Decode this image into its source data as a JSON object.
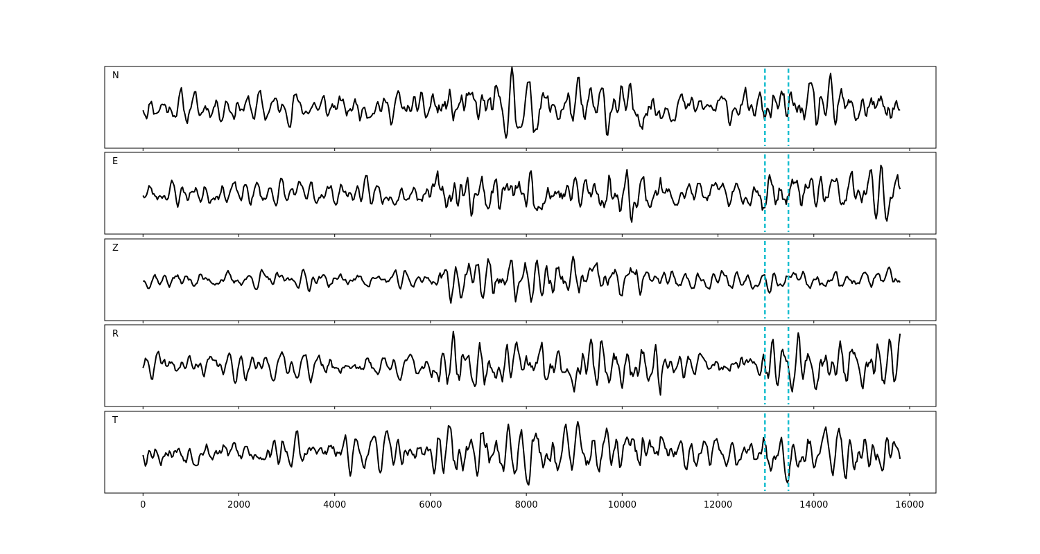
{
  "chart_data": {
    "type": "line",
    "layout": "stacked-panels",
    "shared_x": true,
    "xlim": [
      -800,
      16550
    ],
    "xticks": [
      0,
      2000,
      4000,
      6000,
      8000,
      10000,
      12000,
      14000,
      16000
    ],
    "xtick_labels": [
      "0",
      "2000",
      "4000",
      "6000",
      "8000",
      "10000",
      "12000",
      "14000",
      "16000"
    ],
    "grid": false,
    "legend": "none",
    "trace_color": "#000000",
    "marker_color": "#17becf",
    "markers": [
      12980,
      13470
    ],
    "x_start": 0,
    "x_end": 15800,
    "sample_step": 25,
    "channels": [
      {
        "label": "N",
        "ylim": [
          -1.2,
          1.2
        ],
        "segments": [
          {
            "start": 0,
            "end": 6000,
            "amp": 0.55
          },
          {
            "start": 6000,
            "end": 10800,
            "amp": 0.95
          },
          {
            "start": 10800,
            "end": 12900,
            "amp": 0.6
          },
          {
            "start": 12900,
            "end": 15800,
            "amp": 0.85
          }
        ],
        "seed": 11
      },
      {
        "label": "E",
        "ylim": [
          -1.2,
          1.2
        ],
        "segments": [
          {
            "start": 0,
            "end": 6000,
            "amp": 0.45
          },
          {
            "start": 6000,
            "end": 10800,
            "amp": 0.9
          },
          {
            "start": 10800,
            "end": 12900,
            "amp": 0.5
          },
          {
            "start": 12900,
            "end": 15800,
            "amp": 0.85
          }
        ],
        "seed": 23
      },
      {
        "label": "Z",
        "ylim": [
          -1.2,
          1.2
        ],
        "segments": [
          {
            "start": 0,
            "end": 6100,
            "amp": 0.3
          },
          {
            "start": 6100,
            "end": 10400,
            "amp": 0.75
          },
          {
            "start": 10400,
            "end": 15800,
            "amp": 0.35
          }
        ],
        "seed": 37
      },
      {
        "label": "R",
        "ylim": [
          -1.2,
          1.2
        ],
        "segments": [
          {
            "start": 0,
            "end": 6000,
            "amp": 0.45
          },
          {
            "start": 6000,
            "end": 10800,
            "amp": 0.9
          },
          {
            "start": 10800,
            "end": 12900,
            "amp": 0.5
          },
          {
            "start": 12900,
            "end": 15800,
            "amp": 0.85
          }
        ],
        "seed": 41
      },
      {
        "label": "T",
        "ylim": [
          -1.2,
          1.2
        ],
        "segments": [
          {
            "start": 0,
            "end": 6000,
            "amp": 0.55
          },
          {
            "start": 6000,
            "end": 10800,
            "amp": 0.95
          },
          {
            "start": 10800,
            "end": 12900,
            "amp": 0.6
          },
          {
            "start": 12900,
            "end": 15800,
            "amp": 0.8
          }
        ],
        "seed": 53
      }
    ]
  }
}
